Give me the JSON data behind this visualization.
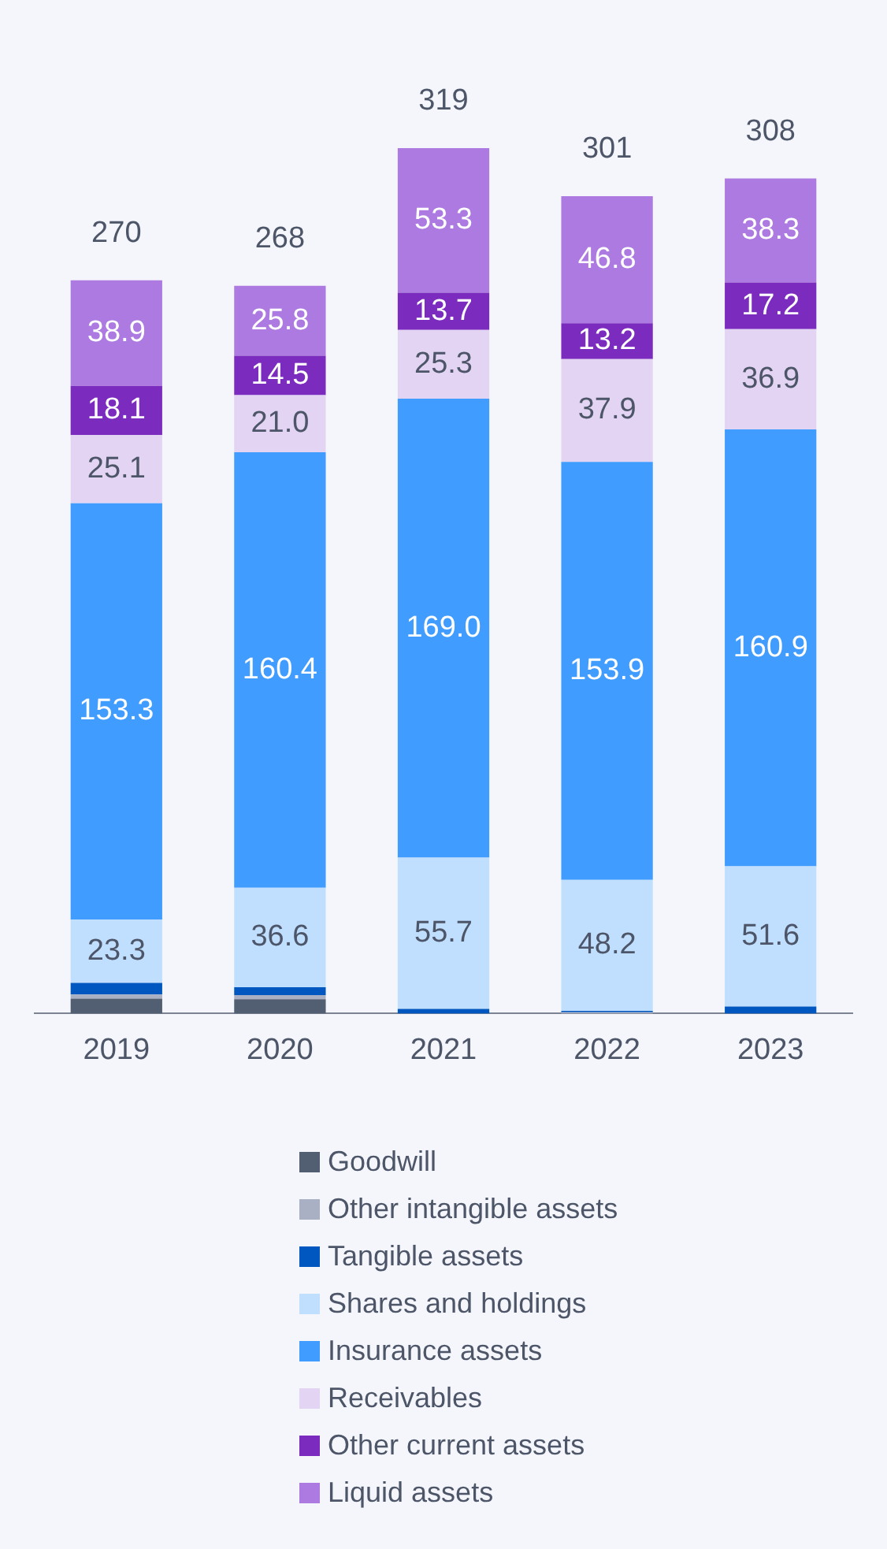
{
  "chart_data": {
    "type": "bar",
    "stacked": true,
    "categories": [
      "2019",
      "2020",
      "2021",
      "2022",
      "2023"
    ],
    "tick_labels": "x",
    "grid": false,
    "legend": "bottom",
    "series": [
      {
        "name": "Goodwill",
        "color": "#525e72",
        "values": [
          5.5,
          5.3,
          0,
          0,
          0
        ]
      },
      {
        "name": "Other intangible assets",
        "color": "#a9b0c3",
        "values": [
          1.5,
          1.5,
          null,
          0.5,
          null
        ]
      },
      {
        "name": "Tangible assets",
        "color": "#0057c0",
        "values": [
          4.3,
          2.9,
          1.7,
          0.5,
          2.6
        ]
      },
      {
        "name": "Shares and holdings",
        "color": "#c0defe",
        "values": [
          23.3,
          36.6,
          55.7,
          48.2,
          51.6
        ],
        "value_labels": [
          "23.3",
          "36.6",
          "55.7",
          "48.2",
          "51.6"
        ]
      },
      {
        "name": "Insurance assets",
        "color": "#409cff",
        "values": [
          153.3,
          160.4,
          169.0,
          153.9,
          160.9
        ],
        "value_labels": [
          "153.3",
          "160.4",
          "169.0",
          "153.9",
          "160.9"
        ]
      },
      {
        "name": "Receivables",
        "color": "#e4d4f4",
        "values": [
          25.1,
          21.0,
          25.3,
          37.9,
          36.9
        ],
        "value_labels": [
          "25.1",
          "21.0",
          "25.3",
          "37.9",
          "36.9"
        ]
      },
      {
        "name": "Other current assets",
        "color": "#7b2cbf",
        "values": [
          18.1,
          14.5,
          13.7,
          13.2,
          17.2
        ],
        "value_labels": [
          "18.1",
          "14.5",
          "13.7",
          "13.2",
          "17.2"
        ]
      },
      {
        "name": "Liquid assets",
        "color": "#ac7ae0",
        "values": [
          38.9,
          25.8,
          53.3,
          46.8,
          38.3
        ],
        "value_labels": [
          "38.9",
          "25.8",
          "53.3",
          "46.8",
          "38.3"
        ]
      }
    ],
    "totals": [
      "270",
      "268",
      "319",
      "301",
      "308"
    ]
  }
}
